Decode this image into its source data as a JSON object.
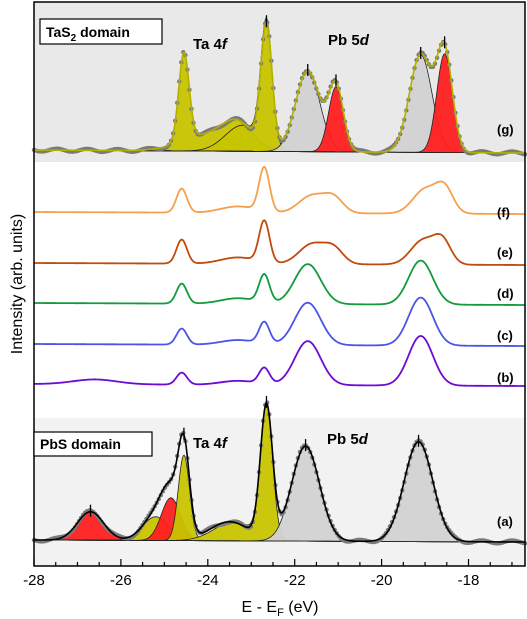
{
  "chart_data": {
    "type": "line",
    "title": "",
    "xlabel": "E - E",
    "xlabel_sub": "F",
    "xlabel_unit": " (eV)",
    "ylabel": "Intensity (arb. units)",
    "xlim": [
      -28,
      -16.7
    ],
    "x_ticks": [
      -28,
      -26,
      -24,
      -22,
      -20,
      -18
    ],
    "x_tick_labels": [
      "-28",
      "-26",
      "-24",
      "-22",
      "-20",
      "-18"
    ],
    "grid": false,
    "panels": [
      {
        "name": "TaS2 domain",
        "label_main": "TaS",
        "label_sub": "2",
        "label_rest": " domain",
        "background": "#e9e9e9"
      },
      {
        "name": "PbS domain",
        "label": "PbS domain",
        "background": "#f2f2f2"
      }
    ],
    "annotations": [
      {
        "text_main": "Ta 4",
        "text_ital": "f",
        "x": -23.3,
        "panel": "top"
      },
      {
        "text_main": "Pb 5",
        "text_ital": "d",
        "x": -20.7,
        "panel": "top"
      },
      {
        "text_main": "Ta 4",
        "text_ital": "f",
        "x": -23.5,
        "panel": "bottom"
      },
      {
        "text_main": "Pb 5",
        "text_ital": "d",
        "x": -21.0,
        "panel": "bottom"
      }
    ],
    "series": [
      {
        "name": "(g)",
        "color": "#555555",
        "peaks": [
          [
            -24.55,
            0.68,
            0.12
          ],
          [
            -23.3,
            0.18,
            0.35
          ],
          [
            -24.0,
            0.12,
            0.6
          ],
          [
            -22.65,
            0.95,
            0.13
          ],
          [
            -21.7,
            0.62,
            0.28
          ],
          [
            -21.05,
            0.5,
            0.17
          ],
          [
            -19.1,
            0.75,
            0.26
          ],
          [
            -18.55,
            0.76,
            0.18
          ]
        ],
        "fit_components": [
          {
            "fill": "#c7c400",
            "peaks": [
              [
                -24.55,
                0.68,
                0.12
              ],
              [
                -23.3,
                0.18,
                0.35
              ],
              [
                -24.0,
                0.12,
                0.6
              ]
            ]
          },
          {
            "fill": "#c7c400",
            "peaks": [
              [
                -22.65,
                0.95,
                0.13
              ],
              [
                -23.2,
                0.2,
                0.4
              ]
            ]
          },
          {
            "fill": "#d2d2d2",
            "peaks": [
              [
                -21.7,
                0.62,
                0.28
              ]
            ]
          },
          {
            "fill": "#ff1f1f",
            "peaks": [
              [
                -21.05,
                0.5,
                0.17
              ]
            ]
          },
          {
            "fill": "#d2d2d2",
            "peaks": [
              [
                -19.1,
                0.75,
                0.26
              ]
            ]
          },
          {
            "fill": "#ff1f1f",
            "peaks": [
              [
                -18.55,
                0.76,
                0.18
              ]
            ]
          }
        ],
        "markers": [
          -22.65,
          -21.7,
          -21.05,
          -19.1,
          -18.55
        ]
      },
      {
        "name": "(f)",
        "color": "#f5a04d",
        "peaks": [
          [
            -24.6,
            0.3,
            0.12
          ],
          [
            -23.3,
            0.08,
            0.4
          ],
          [
            -22.7,
            0.55,
            0.12
          ],
          [
            -21.6,
            0.22,
            0.3
          ],
          [
            -21.1,
            0.18,
            0.22
          ],
          [
            -19.0,
            0.3,
            0.28
          ],
          [
            -18.55,
            0.3,
            0.2
          ]
        ]
      },
      {
        "name": "(e)",
        "color": "#c24a0a",
        "peaks": [
          [
            -24.6,
            0.3,
            0.12
          ],
          [
            -23.3,
            0.08,
            0.4
          ],
          [
            -22.7,
            0.52,
            0.12
          ],
          [
            -21.6,
            0.25,
            0.3
          ],
          [
            -21.1,
            0.18,
            0.22
          ],
          [
            -19.05,
            0.3,
            0.28
          ],
          [
            -18.6,
            0.28,
            0.2
          ]
        ]
      },
      {
        "name": "(d)",
        "color": "#139a3c",
        "peaks": [
          [
            -24.6,
            0.25,
            0.12
          ],
          [
            -23.3,
            0.07,
            0.4
          ],
          [
            -22.7,
            0.35,
            0.12
          ],
          [
            -21.7,
            0.5,
            0.3
          ],
          [
            -19.1,
            0.55,
            0.28
          ]
        ]
      },
      {
        "name": "(c)",
        "color": "#4a55e6",
        "peaks": [
          [
            -24.6,
            0.2,
            0.12
          ],
          [
            -23.3,
            0.06,
            0.4
          ],
          [
            -22.7,
            0.27,
            0.12
          ],
          [
            -21.7,
            0.53,
            0.3
          ],
          [
            -19.1,
            0.6,
            0.28
          ]
        ]
      },
      {
        "name": "(b)",
        "color": "#6d0bd3",
        "peaks": [
          [
            -26.6,
            0.06,
            0.5
          ],
          [
            -24.6,
            0.15,
            0.12
          ],
          [
            -23.3,
            0.05,
            0.4
          ],
          [
            -22.7,
            0.2,
            0.12
          ],
          [
            -21.7,
            0.55,
            0.3
          ],
          [
            -19.1,
            0.62,
            0.28
          ]
        ]
      },
      {
        "name": "(a)",
        "color": "#111111",
        "peaks": [
          [
            -26.7,
            0.3,
            0.3
          ],
          [
            -25.2,
            0.25,
            0.3
          ],
          [
            -24.85,
            0.45,
            0.22
          ],
          [
            -24.55,
            0.9,
            0.13
          ],
          [
            -23.5,
            0.2,
            0.45
          ],
          [
            -22.65,
            1.4,
            0.14
          ],
          [
            -21.75,
            1.0,
            0.32
          ],
          [
            -19.15,
            1.05,
            0.33
          ]
        ],
        "fit_components": [
          {
            "fill": "#ff1f1f",
            "peaks": [
              [
                -26.7,
                0.3,
                0.3
              ]
            ]
          },
          {
            "fill": "#c7c400",
            "peaks": [
              [
                -25.2,
                0.25,
                0.3
              ]
            ]
          },
          {
            "fill": "#ff1f1f",
            "peaks": [
              [
                -24.85,
                0.45,
                0.22
              ]
            ]
          },
          {
            "fill": "#c7c400",
            "peaks": [
              [
                -24.55,
                0.9,
                0.13
              ]
            ]
          },
          {
            "fill": "#c7c400",
            "peaks": [
              [
                -22.65,
                1.4,
                0.14
              ],
              [
                -23.4,
                0.2,
                0.45
              ]
            ]
          },
          {
            "fill": "#d2d2d2",
            "peaks": [
              [
                -21.75,
                1.0,
                0.32
              ]
            ]
          },
          {
            "fill": "#d2d2d2",
            "peaks": [
              [
                -19.15,
                1.05,
                0.33
              ]
            ]
          }
        ],
        "markers": [
          -26.7,
          -24.55,
          -22.65,
          -21.75,
          -19.15
        ]
      }
    ]
  }
}
